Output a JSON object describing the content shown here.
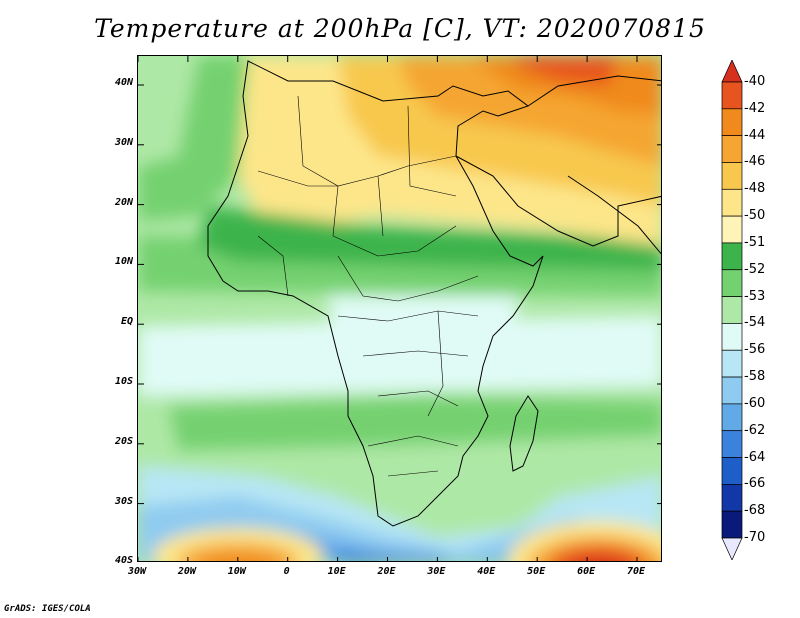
{
  "title": "Temperature at 200hPa [C], VT: 2020070815",
  "credit": "GrADS: IGES/COLA",
  "lat_labels": [
    "40N",
    "30N",
    "20N",
    "10N",
    "EQ",
    "10S",
    "20S",
    "30S",
    "40S"
  ],
  "lon_labels": [
    "30W",
    "20W",
    "10W",
    "0",
    "10E",
    "20E",
    "30E",
    "40E",
    "50E",
    "60E",
    "70E"
  ],
  "colorbar": {
    "labels": [
      "-40",
      "-42",
      "-44",
      "-46",
      "-48",
      "-50",
      "-51",
      "-52",
      "-53",
      "-54",
      "-56",
      "-58",
      "-60",
      "-62",
      "-64",
      "-66",
      "-68",
      "-70"
    ],
    "colors": [
      "#d7301f",
      "#e8541f",
      "#f08a1c",
      "#f5a632",
      "#f8c84e",
      "#fde68a",
      "#fff4b8",
      "#3cb44b",
      "#74d16f",
      "#aee8a6",
      "#e0fbf6",
      "#b7e7f5",
      "#8fcbf0",
      "#62a9e8",
      "#3b82dc",
      "#1d5ec8",
      "#1238a8",
      "#0a1a7a",
      "#e8e8ff"
    ]
  }
}
